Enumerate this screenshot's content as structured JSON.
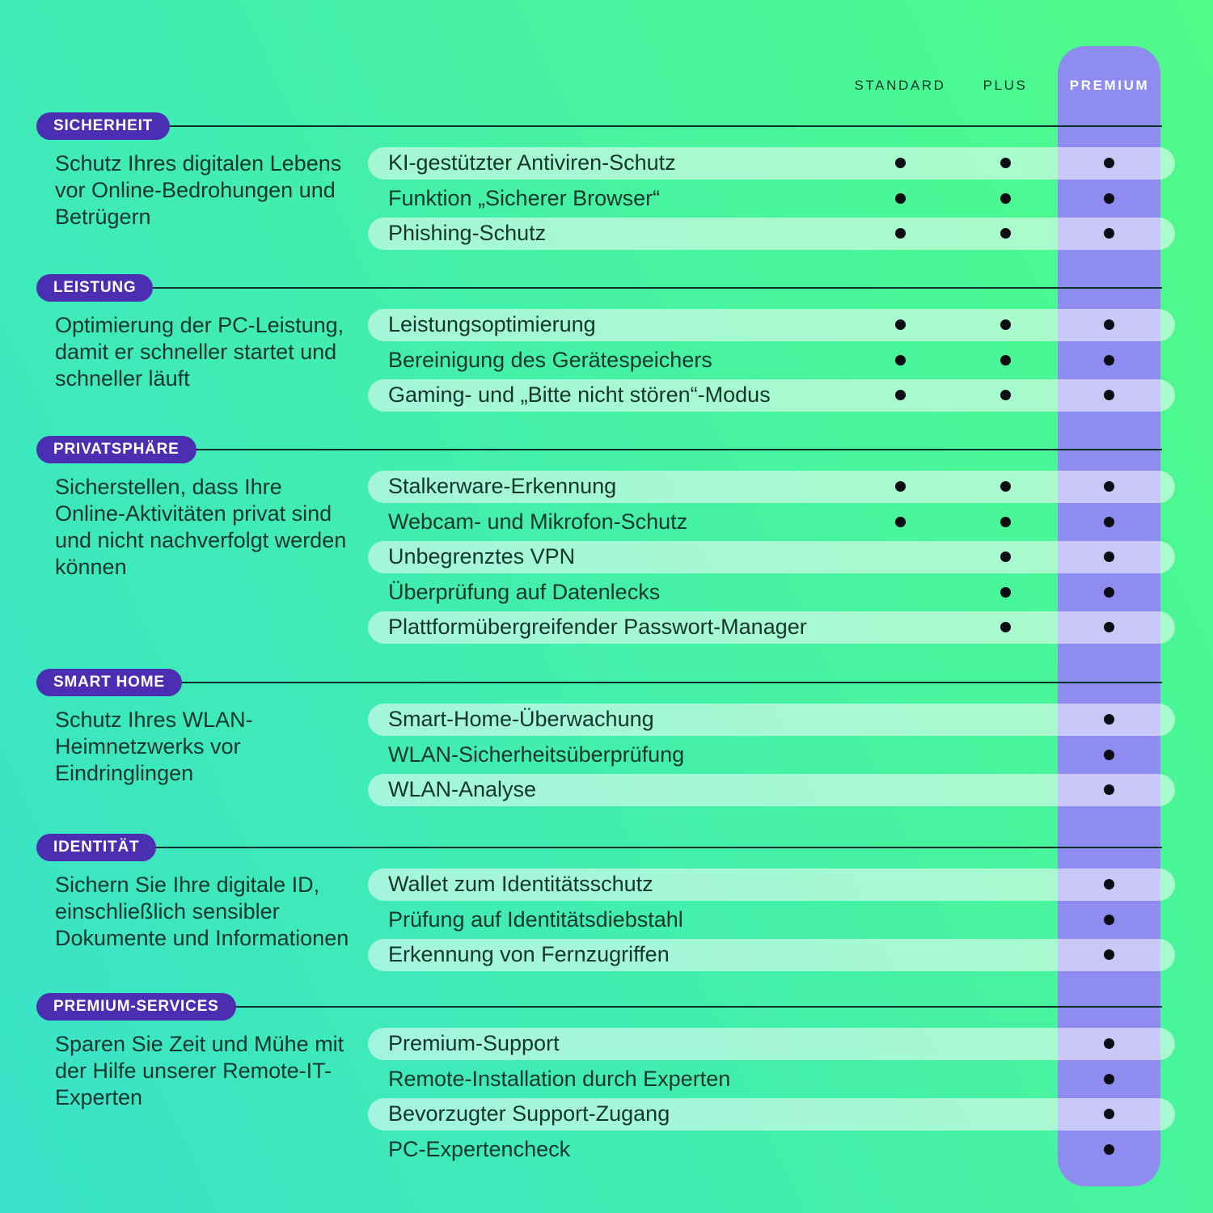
{
  "header": {
    "columns": [
      "STANDARD",
      "PLUS",
      "PREMIUM"
    ],
    "highlighted_column": "PREMIUM"
  },
  "colors": {
    "background_green_top": "#50FB88",
    "background_teal_bottom": "#39E2C9",
    "badge_purple": "#4C2EB3",
    "premium_column_purple": "#8E8CF0",
    "row_pill": "rgba(255,255,255,0.52)",
    "text_dark": "#14362C",
    "dot_black": "#0D0D16"
  },
  "chart_data": {
    "type": "table",
    "columns": [
      "STANDARD",
      "PLUS",
      "PREMIUM"
    ],
    "highlight_column": "PREMIUM",
    "legend": "dot = feature included in plan",
    "groups": [
      {
        "badge": "SICHERHEIT",
        "description": "Schutz Ihres digitalen Lebens vor Online-Bedrohungen und Betrügern",
        "rows": [
          {
            "feature": "KI-gestützter Antiviren-Schutz",
            "values": [
              true,
              true,
              true
            ]
          },
          {
            "feature": "Funktion „Sicherer Browser“",
            "values": [
              true,
              true,
              true
            ]
          },
          {
            "feature": "Phishing-Schutz",
            "values": [
              true,
              true,
              true
            ]
          }
        ]
      },
      {
        "badge": "LEISTUNG",
        "description": "Optimierung der PC-Leistung, damit er schneller startet und schneller läuft",
        "rows": [
          {
            "feature": "Leistungsoptimierung",
            "values": [
              true,
              true,
              true
            ]
          },
          {
            "feature": "Bereinigung des Gerätespeichers",
            "values": [
              true,
              true,
              true
            ]
          },
          {
            "feature": "Gaming- und „Bitte nicht stören“-Modus",
            "values": [
              true,
              true,
              true
            ]
          }
        ]
      },
      {
        "badge": "PRIVATSPHÄRE",
        "description": "Sicherstellen, dass Ihre Online-Aktivitäten privat sind und nicht nachverfolgt werden können",
        "rows": [
          {
            "feature": "Stalkerware-Erkennung",
            "values": [
              true,
              true,
              true
            ]
          },
          {
            "feature": "Webcam- und Mikrofon-Schutz",
            "values": [
              true,
              true,
              true
            ]
          },
          {
            "feature": "Unbegrenztes VPN",
            "values": [
              false,
              true,
              true
            ]
          },
          {
            "feature": "Überprüfung auf Datenlecks",
            "values": [
              false,
              true,
              true
            ]
          },
          {
            "feature": "Plattformübergreifender Passwort-Manager",
            "values": [
              false,
              true,
              true
            ]
          }
        ]
      },
      {
        "badge": "SMART HOME",
        "description": "Schutz Ihres WLAN-Heimnetzwerks vor Eindringlingen",
        "rows": [
          {
            "feature": "Smart-Home-Überwachung",
            "values": [
              false,
              false,
              true
            ]
          },
          {
            "feature": "WLAN-Sicherheitsüberprüfung",
            "values": [
              false,
              false,
              true
            ]
          },
          {
            "feature": "WLAN-Analyse",
            "values": [
              false,
              false,
              true
            ]
          }
        ]
      },
      {
        "badge": "IDENTITÄT",
        "description": "Sichern Sie Ihre digitale ID, einschließlich sensibler Dokumente und Informationen",
        "rows": [
          {
            "feature": "Wallet zum Identitätsschutz",
            "values": [
              false,
              false,
              true
            ]
          },
          {
            "feature": "Prüfung auf Identitätsdiebstahl",
            "values": [
              false,
              false,
              true
            ]
          },
          {
            "feature": "Erkennung von Fernzugriffen",
            "values": [
              false,
              false,
              true
            ]
          }
        ]
      },
      {
        "badge": "PREMIUM-SERVICES",
        "description": "Sparen Sie Zeit und Mühe mit der Hilfe unserer Remote-IT-Experten",
        "rows": [
          {
            "feature": "Premium-Support",
            "values": [
              false,
              false,
              true
            ]
          },
          {
            "feature": "Remote-Installation durch Experten",
            "values": [
              false,
              false,
              true
            ]
          },
          {
            "feature": "Bevorzugter Support-Zugang",
            "values": [
              false,
              false,
              true
            ]
          },
          {
            "feature": "PC-Expertencheck",
            "values": [
              false,
              false,
              true
            ]
          }
        ]
      }
    ]
  }
}
